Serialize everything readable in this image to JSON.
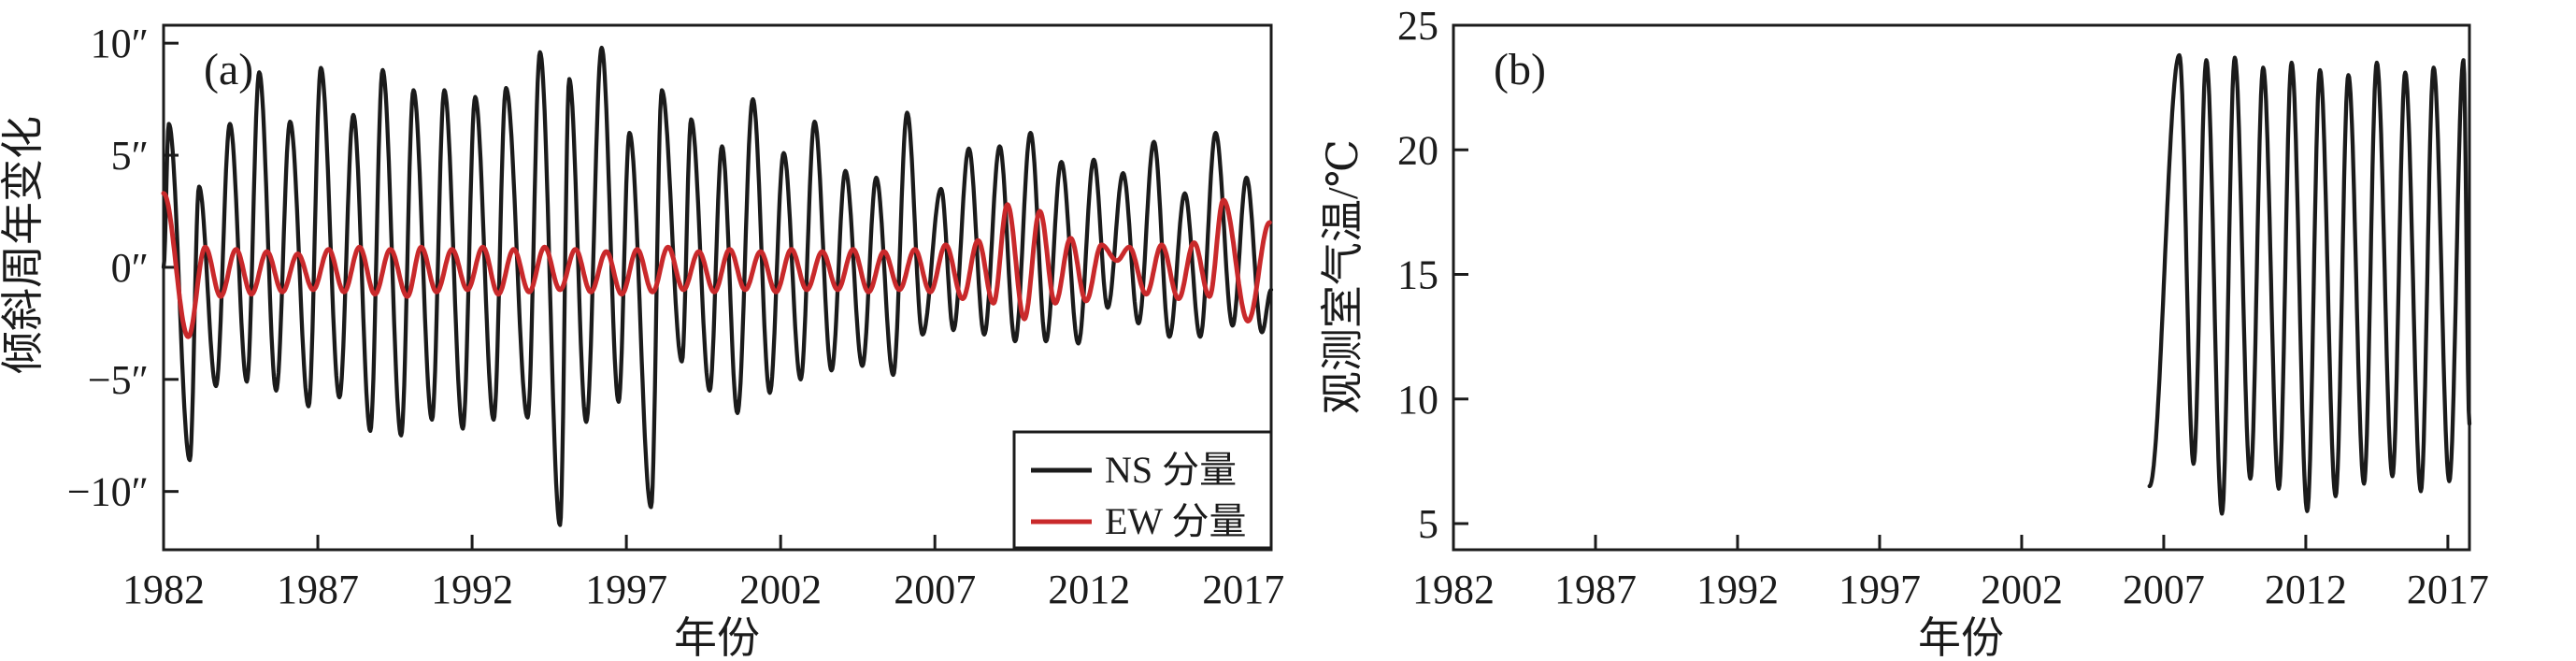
{
  "panels": [
    {
      "panel_label": "(a)",
      "y_axis_title": "倾斜周年变化",
      "x_axis_title": "年份",
      "legend": [
        {
          "label": "NS 分量",
          "color": "#1b1b1b"
        },
        {
          "label": "EW 分量",
          "color": "#c9292b"
        }
      ]
    },
    {
      "panel_label": "(b)",
      "y_axis_title": "观测室气温/℃",
      "x_axis_title": "年份"
    }
  ],
  "colors": {
    "ns": "#1b1b1b",
    "ew": "#c9292b",
    "temperature": "#1b1b1b",
    "frame": "#1b1b1b"
  },
  "chart_data": [
    {
      "type": "line",
      "panel": "a",
      "xlabel": "年份",
      "ylabel": "倾斜周年变化",
      "unit": "arcsecond",
      "xlim": [
        1982,
        2017.9
      ],
      "ylim": [
        -12.6,
        10.8
      ],
      "x_ticks": [
        1982,
        1987,
        1992,
        1997,
        2002,
        2007,
        2012,
        2017
      ],
      "y_ticks": [
        {
          "value": 10,
          "label": "10″"
        },
        {
          "value": 5,
          "label": "5″"
        },
        {
          "value": 0,
          "label": "0″"
        },
        {
          "value": -5,
          "label": "−5″"
        },
        {
          "value": -10,
          "label": "−10″"
        }
      ],
      "grid": false,
      "legend_position": "bottom-right",
      "interpolation": "cosine-through-extremes",
      "series": [
        {
          "name": "NS 分量",
          "color": "#1b1b1b",
          "keypoints": [
            [
              1982.0,
              0.0
            ],
            [
              1982.17,
              6.4
            ],
            [
              1982.85,
              -8.6
            ],
            [
              1983.15,
              3.6
            ],
            [
              1983.7,
              -5.3
            ],
            [
              1984.15,
              6.4
            ],
            [
              1984.7,
              -5.1
            ],
            [
              1985.1,
              8.7
            ],
            [
              1985.65,
              -5.5
            ],
            [
              1986.1,
              6.5
            ],
            [
              1986.7,
              -6.2
            ],
            [
              1987.1,
              8.9
            ],
            [
              1987.7,
              -5.8
            ],
            [
              1988.15,
              6.8
            ],
            [
              1988.7,
              -7.3
            ],
            [
              1989.1,
              8.8
            ],
            [
              1989.7,
              -7.5
            ],
            [
              1990.1,
              7.9
            ],
            [
              1990.7,
              -6.8
            ],
            [
              1991.1,
              7.9
            ],
            [
              1991.7,
              -7.2
            ],
            [
              1992.1,
              7.6
            ],
            [
              1992.7,
              -6.8
            ],
            [
              1993.1,
              8.0
            ],
            [
              1993.8,
              -6.7
            ],
            [
              1994.2,
              9.6
            ],
            [
              1994.85,
              -11.5
            ],
            [
              1995.15,
              8.4
            ],
            [
              1995.7,
              -6.9
            ],
            [
              1996.2,
              9.8
            ],
            [
              1996.75,
              -6.0
            ],
            [
              1997.1,
              6.0
            ],
            [
              1997.8,
              -10.7
            ],
            [
              1998.15,
              7.9
            ],
            [
              1998.8,
              -4.2
            ],
            [
              1999.1,
              6.6
            ],
            [
              1999.7,
              -5.5
            ],
            [
              2000.1,
              5.4
            ],
            [
              2000.6,
              -6.5
            ],
            [
              2001.1,
              7.5
            ],
            [
              2001.65,
              -5.6
            ],
            [
              2002.1,
              5.1
            ],
            [
              2002.65,
              -5.0
            ],
            [
              2003.1,
              6.5
            ],
            [
              2003.65,
              -4.6
            ],
            [
              2004.1,
              4.3
            ],
            [
              2004.65,
              -4.4
            ],
            [
              2005.1,
              4.0
            ],
            [
              2005.65,
              -4.8
            ],
            [
              2006.1,
              6.9
            ],
            [
              2006.6,
              -3.0
            ],
            [
              2007.2,
              3.5
            ],
            [
              2007.6,
              -2.8
            ],
            [
              2008.1,
              5.3
            ],
            [
              2008.6,
              -3.0
            ],
            [
              2009.1,
              5.4
            ],
            [
              2009.6,
              -3.3
            ],
            [
              2010.1,
              6.0
            ],
            [
              2010.6,
              -3.3
            ],
            [
              2011.1,
              4.7
            ],
            [
              2011.65,
              -3.4
            ],
            [
              2012.15,
              4.8
            ],
            [
              2012.6,
              -1.8
            ],
            [
              2013.1,
              4.2
            ],
            [
              2013.6,
              -2.5
            ],
            [
              2014.1,
              5.6
            ],
            [
              2014.6,
              -3.1
            ],
            [
              2015.1,
              3.3
            ],
            [
              2015.6,
              -3.1
            ],
            [
              2016.1,
              6.0
            ],
            [
              2016.65,
              -2.6
            ],
            [
              2017.1,
              4.0
            ],
            [
              2017.6,
              -2.9
            ],
            [
              2017.9,
              -1.0
            ]
          ]
        },
        {
          "name": "EW 分量",
          "color": "#c9292b",
          "keypoints": [
            [
              1982.0,
              3.3
            ],
            [
              1982.8,
              -3.1
            ],
            [
              1983.35,
              0.9
            ],
            [
              1983.85,
              -1.3
            ],
            [
              1984.35,
              0.8
            ],
            [
              1984.85,
              -1.2
            ],
            [
              1985.35,
              0.7
            ],
            [
              1985.85,
              -1.1
            ],
            [
              1986.35,
              0.6
            ],
            [
              1986.85,
              -1.0
            ],
            [
              1987.35,
              0.8
            ],
            [
              1987.85,
              -1.1
            ],
            [
              1988.35,
              0.9
            ],
            [
              1988.85,
              -1.2
            ],
            [
              1989.35,
              0.8
            ],
            [
              1989.9,
              -1.3
            ],
            [
              1990.35,
              0.9
            ],
            [
              1990.85,
              -1.1
            ],
            [
              1991.35,
              0.8
            ],
            [
              1991.85,
              -1.0
            ],
            [
              1992.35,
              0.9
            ],
            [
              1992.85,
              -1.2
            ],
            [
              1993.35,
              0.8
            ],
            [
              1993.85,
              -1.1
            ],
            [
              1994.35,
              0.9
            ],
            [
              1994.85,
              -1.0
            ],
            [
              1995.35,
              0.8
            ],
            [
              1995.85,
              -1.1
            ],
            [
              1996.35,
              0.7
            ],
            [
              1996.85,
              -1.2
            ],
            [
              1997.35,
              0.8
            ],
            [
              1997.85,
              -1.1
            ],
            [
              1998.35,
              0.9
            ],
            [
              1998.85,
              -1.0
            ],
            [
              1999.35,
              0.7
            ],
            [
              1999.85,
              -1.1
            ],
            [
              2000.35,
              0.8
            ],
            [
              2000.85,
              -1.0
            ],
            [
              2001.35,
              0.7
            ],
            [
              2001.85,
              -1.1
            ],
            [
              2002.35,
              0.8
            ],
            [
              2002.85,
              -1.0
            ],
            [
              2003.35,
              0.7
            ],
            [
              2003.85,
              -1.0
            ],
            [
              2004.35,
              0.8
            ],
            [
              2004.85,
              -1.1
            ],
            [
              2005.35,
              0.7
            ],
            [
              2005.85,
              -1.0
            ],
            [
              2006.35,
              0.8
            ],
            [
              2006.85,
              -1.1
            ],
            [
              2007.35,
              1.0
            ],
            [
              2007.9,
              -1.4
            ],
            [
              2008.4,
              1.2
            ],
            [
              2008.9,
              -1.6
            ],
            [
              2009.35,
              2.8
            ],
            [
              2009.9,
              -2.3
            ],
            [
              2010.4,
              2.5
            ],
            [
              2010.9,
              -1.6
            ],
            [
              2011.4,
              1.3
            ],
            [
              2011.9,
              -1.5
            ],
            [
              2012.4,
              1.0
            ],
            [
              2012.9,
              0.3
            ],
            [
              2013.3,
              0.9
            ],
            [
              2013.85,
              -1.2
            ],
            [
              2014.35,
              1.0
            ],
            [
              2014.9,
              -1.4
            ],
            [
              2015.4,
              1.1
            ],
            [
              2015.9,
              -1.3
            ],
            [
              2016.35,
              3.0
            ],
            [
              2017.15,
              -2.4
            ],
            [
              2017.85,
              2.0
            ]
          ]
        }
      ]
    },
    {
      "type": "line",
      "panel": "b",
      "xlabel": "年份",
      "ylabel": "观测室气温/℃",
      "unit": "celsius",
      "xlim": [
        1982,
        2017.76
      ],
      "ylim": [
        3.95,
        25
      ],
      "x_ticks": [
        1982,
        1987,
        1992,
        1997,
        2002,
        2007,
        2012,
        2017
      ],
      "y_ticks": [
        {
          "value": 25,
          "label": "25"
        },
        {
          "value": 20,
          "label": "20"
        },
        {
          "value": 15,
          "label": "15"
        },
        {
          "value": 10,
          "label": "10"
        },
        {
          "value": 5,
          "label": "5"
        }
      ],
      "grid": false,
      "interpolation": "cosine-through-extremes",
      "data_start_year": 2006.5,
      "series": [
        {
          "name": "观测室气温",
          "color": "#1b1b1b",
          "keypoints": [
            [
              2006.5,
              6.5
            ],
            [
              2007.55,
              23.8
            ],
            [
              2008.05,
              7.4
            ],
            [
              2008.5,
              23.6
            ],
            [
              2009.05,
              5.4
            ],
            [
              2009.5,
              23.7
            ],
            [
              2010.05,
              6.8
            ],
            [
              2010.5,
              23.3
            ],
            [
              2011.05,
              6.4
            ],
            [
              2011.5,
              23.5
            ],
            [
              2012.05,
              5.5
            ],
            [
              2012.5,
              23.2
            ],
            [
              2013.05,
              6.1
            ],
            [
              2013.5,
              23.0
            ],
            [
              2014.05,
              6.6
            ],
            [
              2014.5,
              23.5
            ],
            [
              2015.05,
              6.9
            ],
            [
              2015.5,
              23.1
            ],
            [
              2016.05,
              6.3
            ],
            [
              2016.5,
              23.3
            ],
            [
              2017.05,
              6.7
            ],
            [
              2017.55,
              23.6
            ],
            [
              2017.76,
              9.0
            ]
          ]
        }
      ]
    }
  ]
}
